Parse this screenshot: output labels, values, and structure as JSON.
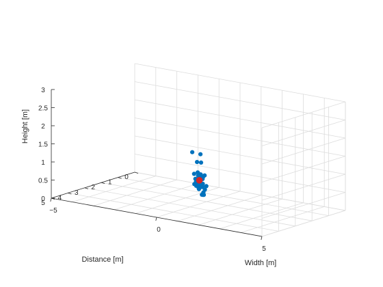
{
  "chart_data": {
    "type": "scatter",
    "title": "",
    "xlabel": "Distance [m]",
    "ylabel": "Width [m]",
    "zlabel": "Height [m]",
    "xlim": [
      0,
      5
    ],
    "ylim": [
      -5,
      5
    ],
    "zlim": [
      0,
      3
    ],
    "xticks": [
      0,
      1,
      2,
      3,
      4,
      5
    ],
    "yticks": [
      -5,
      0,
      5
    ],
    "zticks": [
      0,
      0.5,
      1,
      1.5,
      2,
      2.5,
      3
    ],
    "grid": true,
    "colors": {
      "points": "#0072bd",
      "center": "#d62728"
    },
    "series": [
      {
        "points": [
          [
            2.55,
            -0.25,
            1.42
          ],
          [
            2.75,
            0.3,
            1.45
          ],
          [
            2.45,
            -0.1,
            1.15
          ],
          [
            2.65,
            0.25,
            1.2
          ],
          [
            2.5,
            -0.2,
            0.82
          ],
          [
            2.6,
            0.05,
            0.9
          ],
          [
            2.55,
            0.15,
            0.85
          ],
          [
            2.5,
            0.3,
            0.83
          ],
          [
            2.7,
            0.2,
            0.88
          ],
          [
            2.6,
            0.1,
            0.8
          ],
          [
            2.45,
            -0.05,
            0.78
          ],
          [
            2.55,
            0.1,
            0.75
          ],
          [
            2.5,
            0.2,
            0.72
          ],
          [
            2.55,
            -0.1,
            0.7
          ],
          [
            2.55,
            0.0,
            0.68
          ],
          [
            2.5,
            0.05,
            0.7
          ],
          [
            2.6,
            0.25,
            0.78
          ],
          [
            2.65,
            0.35,
            0.82
          ],
          [
            2.55,
            0.15,
            0.68
          ],
          [
            2.45,
            0.05,
            0.62
          ],
          [
            2.45,
            -0.15,
            0.6
          ],
          [
            2.5,
            0.1,
            0.58
          ],
          [
            2.45,
            0.15,
            0.55
          ],
          [
            2.5,
            0.0,
            0.54
          ],
          [
            2.55,
            -0.15,
            0.55
          ],
          [
            2.5,
            0.2,
            0.5
          ],
          [
            2.45,
            0.1,
            0.48
          ],
          [
            2.55,
            0.05,
            0.47
          ],
          [
            2.5,
            -0.1,
            0.5
          ],
          [
            2.4,
            0.3,
            0.52
          ],
          [
            2.55,
            0.35,
            0.45
          ],
          [
            2.6,
            0.15,
            0.5
          ],
          [
            2.65,
            0.2,
            0.55
          ],
          [
            2.55,
            0.25,
            0.6
          ],
          [
            2.45,
            0.0,
            0.45
          ],
          [
            2.4,
            -0.05,
            0.4
          ],
          [
            2.55,
            0.3,
            0.3
          ],
          [
            2.35,
            0.1,
            0.25
          ],
          [
            2.35,
            0.05,
            0.25
          ],
          [
            2.7,
            0.4,
            0.4
          ]
        ]
      },
      {
        "points": [
          [
            2.5,
            0.05,
            0.67
          ]
        ]
      }
    ]
  }
}
